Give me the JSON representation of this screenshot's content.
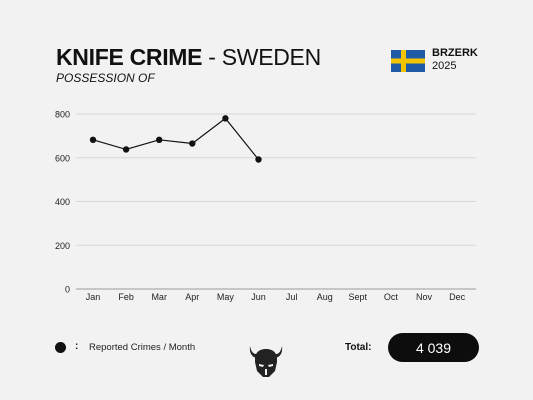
{
  "header": {
    "title_bold": "KNIFE CRIME",
    "title_sep": " - ",
    "title_light": "SWEDEN",
    "subtitle": "POSSESSION OF"
  },
  "brand": {
    "name": "BRZERK",
    "year": "2025",
    "flag_icon": "sweden-flag-icon",
    "flag_colors": {
      "blue": "#1f5aa6",
      "yellow": "#f5c400"
    }
  },
  "chart_data": {
    "type": "line",
    "categories": [
      "Jan",
      "Feb",
      "Mar",
      "Apr",
      "May",
      "Jun",
      "Jul",
      "Aug",
      "Sept",
      "Oct",
      "Nov",
      "Dec"
    ],
    "series": [
      {
        "name": "Reported Crimes / Month",
        "values": [
          682,
          638,
          682,
          665,
          780,
          592,
          null,
          null,
          null,
          null,
          null,
          null
        ]
      }
    ],
    "ylim": [
      0,
      800
    ],
    "yticks": [
      0,
      200,
      400,
      600,
      800
    ],
    "grid": true,
    "legend": "bottom-left",
    "color": "#111111"
  },
  "legend": {
    "colon": ":",
    "label": "Reported Crimes / Month"
  },
  "footer": {
    "logo_icon": "viking-helmet-logo-icon",
    "total_label": "Total:",
    "total_value": "4 039"
  }
}
